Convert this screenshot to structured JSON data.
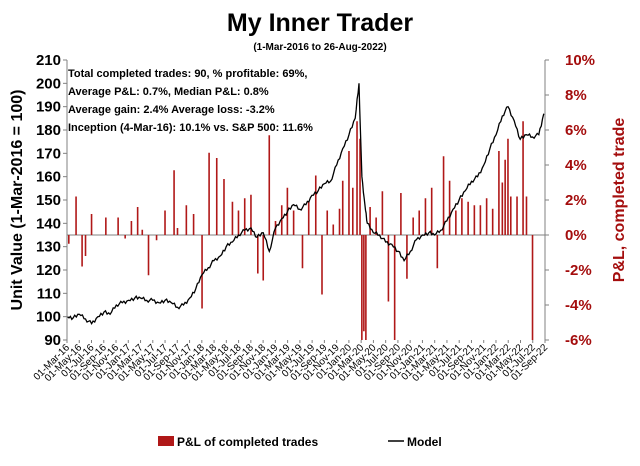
{
  "chart_data": {
    "type": "bar+line",
    "title": "My Inner Trader",
    "subtitle": "(1-Mar-2016 to 26-Aug-2022)",
    "ylabel_left": "Unit Value (1-Mar-2016 = 100)",
    "ylabel_right": "P&L, completed trade",
    "ylim_left": [
      90,
      210
    ],
    "ylim_right": [
      -6,
      10
    ],
    "yticks_left": [
      "90",
      "100",
      "110",
      "120",
      "130",
      "140",
      "150",
      "160",
      "170",
      "180",
      "190",
      "200",
      "210"
    ],
    "yticks_right": [
      "-6%",
      "-4%",
      "-2%",
      "0%",
      "2%",
      "4%",
      "6%",
      "8%",
      "10%"
    ],
    "xticks": [
      "01-Mar-16",
      "01-May-16",
      "01-Jul-16",
      "01-Sep-16",
      "01-Nov-16",
      "01-Jan-17",
      "01-Mar-17",
      "01-May-17",
      "01-Jul-17",
      "01-Sep-17",
      "01-Nov-17",
      "01-Jan-18",
      "01-Mar-18",
      "01-May-18",
      "01-Jul-18",
      "01-Sep-18",
      "01-Nov-18",
      "01-Jan-19",
      "01-Mar-19",
      "01-May-19",
      "01-Jul-19",
      "01-Sep-19",
      "01-Nov-19",
      "01-Jan-20",
      "01-Mar-20",
      "01-May-20",
      "01-Jul-20",
      "01-Sep-20",
      "01-Nov-20",
      "01-Jan-21",
      "01-Mar-21",
      "01-May-21",
      "01-Jul-21",
      "01-Sep-21",
      "01-Nov-21",
      "01-Jan-22",
      "01-Mar-22",
      "01-May-22",
      "01-Jul-22",
      "01-Sep-22"
    ],
    "annotations": [
      "Total completed trades: 90, % profitable: 69%,",
      "Average P&L: 0.7%, Median P&L: 0.8%",
      "Average gain: 2.4% Average loss: -3.2%",
      "Inception (4-Mar-16): 10.1% vs. S&P 500: 11.6%"
    ],
    "colors": {
      "bars": "#b01818",
      "line": "#000000",
      "right_axis": "#a40d0d"
    },
    "series": [
      {
        "name": "Model",
        "kind": "line",
        "axis": "left",
        "points": [
          [
            "2016-03-04",
            100
          ],
          [
            "2016-04-01",
            99.5
          ],
          [
            "2016-05-01",
            101
          ],
          [
            "2016-06-01",
            99
          ],
          [
            "2016-07-01",
            97
          ],
          [
            "2016-08-01",
            100
          ],
          [
            "2016-09-01",
            102
          ],
          [
            "2016-10-01",
            101
          ],
          [
            "2016-11-01",
            105
          ],
          [
            "2016-12-01",
            106
          ],
          [
            "2017-01-01",
            107
          ],
          [
            "2017-02-01",
            108
          ],
          [
            "2017-03-01",
            108
          ],
          [
            "2017-04-01",
            107
          ],
          [
            "2017-05-01",
            107
          ],
          [
            "2017-06-01",
            106
          ],
          [
            "2017-07-01",
            107
          ],
          [
            "2017-08-01",
            106
          ],
          [
            "2017-09-01",
            104
          ],
          [
            "2017-10-01",
            105
          ],
          [
            "2017-11-01",
            108
          ],
          [
            "2017-12-01",
            112
          ],
          [
            "2018-01-01",
            118
          ],
          [
            "2018-02-01",
            121
          ],
          [
            "2018-03-01",
            124
          ],
          [
            "2018-04-01",
            126
          ],
          [
            "2018-05-01",
            130
          ],
          [
            "2018-06-01",
            132
          ],
          [
            "2018-07-01",
            135
          ],
          [
            "2018-08-01",
            137
          ],
          [
            "2018-09-01",
            138
          ],
          [
            "2018-10-01",
            134
          ],
          [
            "2018-11-01",
            136
          ],
          [
            "2018-12-01",
            128
          ],
          [
            "2019-01-01",
            138
          ],
          [
            "2019-02-01",
            142
          ],
          [
            "2019-03-01",
            145
          ],
          [
            "2019-04-01",
            148
          ],
          [
            "2019-05-01",
            146
          ],
          [
            "2019-06-01",
            148
          ],
          [
            "2019-07-01",
            152
          ],
          [
            "2019-08-01",
            154
          ],
          [
            "2019-09-01",
            157
          ],
          [
            "2019-10-01",
            158
          ],
          [
            "2019-11-01",
            165
          ],
          [
            "2019-12-01",
            172
          ],
          [
            "2020-01-01",
            178
          ],
          [
            "2020-02-01",
            185
          ],
          [
            "2020-02-20",
            200
          ],
          [
            "2020-03-05",
            160
          ],
          [
            "2020-03-20",
            148
          ],
          [
            "2020-04-01",
            140
          ],
          [
            "2020-05-01",
            136
          ],
          [
            "2020-06-01",
            135
          ],
          [
            "2020-07-01",
            132
          ],
          [
            "2020-08-01",
            131
          ],
          [
            "2020-09-01",
            128
          ],
          [
            "2020-10-01",
            124
          ],
          [
            "2020-11-01",
            128
          ],
          [
            "2020-12-01",
            133
          ],
          [
            "2021-01-01",
            135
          ],
          [
            "2021-02-01",
            136
          ],
          [
            "2021-03-01",
            135
          ],
          [
            "2021-04-01",
            137
          ],
          [
            "2021-05-01",
            141
          ],
          [
            "2021-06-01",
            146
          ],
          [
            "2021-07-01",
            150
          ],
          [
            "2021-08-01",
            154
          ],
          [
            "2021-09-01",
            158
          ],
          [
            "2021-10-01",
            160
          ],
          [
            "2021-11-01",
            165
          ],
          [
            "2021-12-01",
            172
          ],
          [
            "2022-01-01",
            178
          ],
          [
            "2022-02-01",
            186
          ],
          [
            "2022-03-01",
            190
          ],
          [
            "2022-04-01",
            184
          ],
          [
            "2022-05-01",
            176
          ],
          [
            "2022-06-01",
            178
          ],
          [
            "2022-07-01",
            177
          ],
          [
            "2022-08-01",
            178
          ],
          [
            "2022-08-26",
            187
          ]
        ]
      },
      {
        "name": "P&L of completed trades",
        "kind": "bar",
        "axis": "right",
        "points": [
          [
            "2016-03-10",
            -0.5
          ],
          [
            "2016-04-15",
            2.2
          ],
          [
            "2016-05-15",
            -1.8
          ],
          [
            "2016-06-01",
            -1.2
          ],
          [
            "2016-07-01",
            1.2
          ],
          [
            "2016-09-10",
            1.0
          ],
          [
            "2016-11-10",
            1.0
          ],
          [
            "2016-12-15",
            -0.2
          ],
          [
            "2017-01-15",
            0.8
          ],
          [
            "2017-02-15",
            1.6
          ],
          [
            "2017-03-10",
            0.3
          ],
          [
            "2017-04-10",
            -2.3
          ],
          [
            "2017-05-20",
            -0.3
          ],
          [
            "2017-07-01",
            1.4
          ],
          [
            "2017-08-15",
            3.7
          ],
          [
            "2017-09-01",
            0.4
          ],
          [
            "2017-10-15",
            1.7
          ],
          [
            "2017-11-20",
            1.2
          ],
          [
            "2018-01-01",
            -4.2
          ],
          [
            "2018-02-05",
            4.7
          ],
          [
            "2018-03-15",
            4.4
          ],
          [
            "2018-04-20",
            3.2
          ],
          [
            "2018-06-01",
            1.9
          ],
          [
            "2018-07-01",
            1.4
          ],
          [
            "2018-08-01",
            2.1
          ],
          [
            "2018-09-01",
            2.3
          ],
          [
            "2018-10-05",
            -2.2
          ],
          [
            "2018-11-01",
            -2.6
          ],
          [
            "2018-12-01",
            5.7
          ],
          [
            "2019-01-01",
            0.8
          ],
          [
            "2019-02-01",
            1.7
          ],
          [
            "2019-03-01",
            2.7
          ],
          [
            "2019-04-01",
            1.4
          ],
          [
            "2019-05-15",
            -1.9
          ],
          [
            "2019-06-15",
            1.9
          ],
          [
            "2019-07-20",
            3.4
          ],
          [
            "2019-08-20",
            -3.4
          ],
          [
            "2019-09-15",
            1.4
          ],
          [
            "2019-10-15",
            0.6
          ],
          [
            "2019-11-15",
            1.5
          ],
          [
            "2019-12-01",
            3.1
          ],
          [
            "2020-01-01",
            4.8
          ],
          [
            "2020-01-20",
            2.7
          ],
          [
            "2020-02-10",
            6.5
          ],
          [
            "2020-02-25",
            5.5
          ],
          [
            "2020-03-05",
            -6.0
          ],
          [
            "2020-03-15",
            -5.5
          ],
          [
            "2020-03-25",
            -6.0
          ],
          [
            "2020-04-15",
            1.6
          ],
          [
            "2020-05-15",
            1.0
          ],
          [
            "2020-06-15",
            2.5
          ],
          [
            "2020-07-15",
            -3.8
          ],
          [
            "2020-08-15",
            -6.0
          ],
          [
            "2020-09-15",
            2.4
          ],
          [
            "2020-10-15",
            -2.5
          ],
          [
            "2020-11-15",
            1.0
          ],
          [
            "2020-12-15",
            1.4
          ],
          [
            "2021-01-15",
            2.1
          ],
          [
            "2021-02-15",
            2.7
          ],
          [
            "2021-03-15",
            -1.9
          ],
          [
            "2021-04-15",
            4.5
          ],
          [
            "2021-05-15",
            3.1
          ],
          [
            "2021-06-15",
            1.4
          ],
          [
            "2021-07-15",
            2.1
          ],
          [
            "2021-08-15",
            1.9
          ],
          [
            "2021-09-15",
            1.7
          ],
          [
            "2021-10-15",
            1.7
          ],
          [
            "2021-11-15",
            2.1
          ],
          [
            "2021-12-15",
            1.5
          ],
          [
            "2022-01-15",
            4.8
          ],
          [
            "2022-02-01",
            3.0
          ],
          [
            "2022-02-15",
            4.3
          ],
          [
            "2022-03-01",
            5.5
          ],
          [
            "2022-03-15",
            2.2
          ],
          [
            "2022-04-15",
            2.2
          ],
          [
            "2022-05-15",
            6.5
          ],
          [
            "2022-06-01",
            2.2
          ],
          [
            "2022-07-01",
            -6.0
          ]
        ]
      }
    ],
    "legend": [
      "P&L of completed trades",
      "Model"
    ],
    "legend_position": "bottom"
  }
}
